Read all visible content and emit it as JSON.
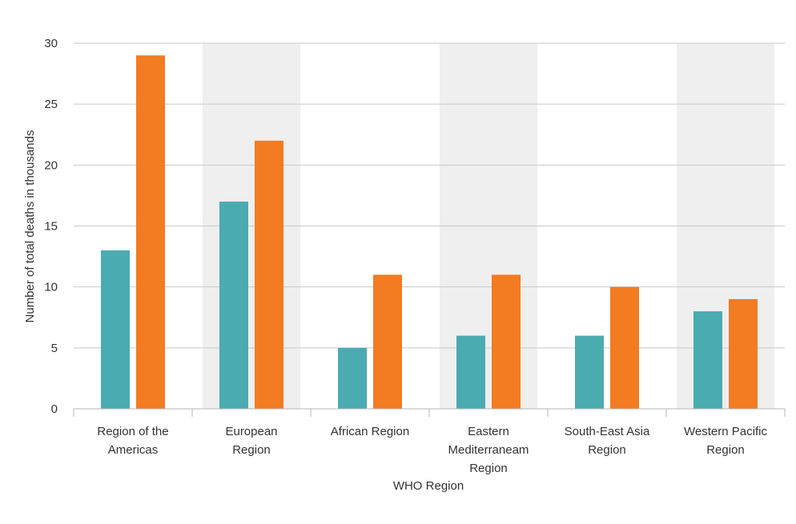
{
  "chart_data": {
    "type": "bar",
    "categories": [
      [
        "Region of the",
        "Americas"
      ],
      [
        "European",
        "Region"
      ],
      [
        "African Region"
      ],
      [
        "Eastern",
        "Mediterraneam",
        "Region"
      ],
      [
        "South-East Asia",
        "Region"
      ],
      [
        "Western Pacific",
        "Region"
      ]
    ],
    "series": [
      {
        "values": [
          13,
          17,
          5,
          6,
          6,
          8
        ],
        "color": "#4aabb1"
      },
      {
        "values": [
          29,
          22,
          11,
          11,
          10,
          9
        ],
        "color": "#f37b22"
      }
    ],
    "xlabel": "WHO Region",
    "ylabel": "Number of total deaths in thousands",
    "ylim": [
      0,
      30
    ],
    "yticks": [
      0,
      5,
      10,
      15,
      20,
      25,
      30
    ],
    "grid": true,
    "alternate_band_color": "#efefef",
    "gridline_color": "#c9c9c9"
  }
}
